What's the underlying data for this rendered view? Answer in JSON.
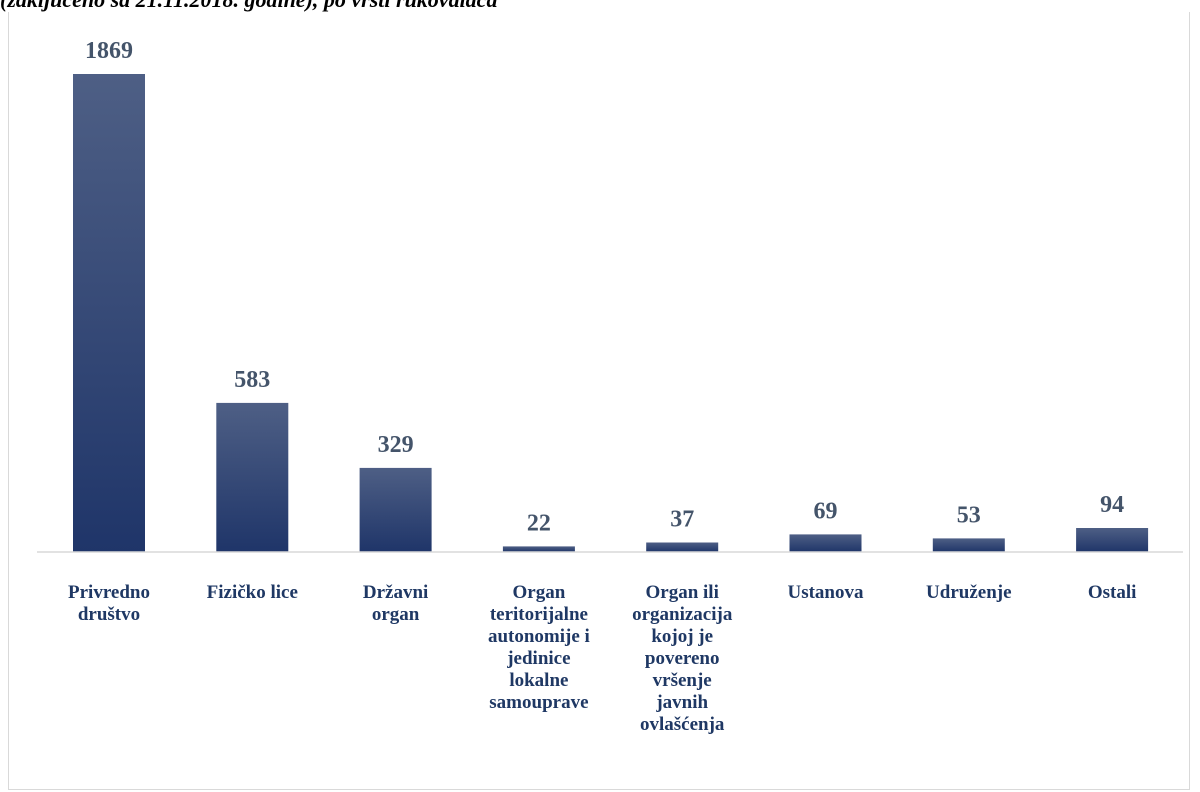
{
  "chart_data": {
    "type": "bar",
    "title": "(zaključeno sa 21.11.2018. godine), po vrsti rukovalaca",
    "categories": [
      "Privredno društvo",
      "Fizičko lice",
      "Državni organ",
      "Organ teritorijalne autonomije i jedinice lokalne samouprave",
      "Organ ili organizacija kojoj je povereno vršenje javnih ovlašćenja",
      "Ustanova",
      "Udruženje",
      "Ostali"
    ],
    "category_lines": [
      [
        "Privredno",
        "društvo"
      ],
      [
        "Fizičko lice"
      ],
      [
        "Državni",
        "organ"
      ],
      [
        "Organ",
        "teritorijalne",
        "autonomije i",
        "jedinice",
        "lokalne",
        "samouprave"
      ],
      [
        "Organ ili",
        "organizacija",
        "kojoj je",
        "povereno",
        "vršenje",
        "javnih",
        "ovlašćenja"
      ],
      [
        "Ustanova"
      ],
      [
        "Udruženje"
      ],
      [
        "Ostali"
      ]
    ],
    "values": [
      1869,
      583,
      329,
      22,
      37,
      69,
      53,
      94
    ],
    "ylim": [
      0,
      1869
    ],
    "grid": false,
    "legend": "none",
    "colors": {
      "bar_top": "#4e5f85",
      "bar_bottom": "#1f3569",
      "axis": "#d9d9d9",
      "value_text": "#44546a",
      "category_text": "#1f3864"
    }
  }
}
